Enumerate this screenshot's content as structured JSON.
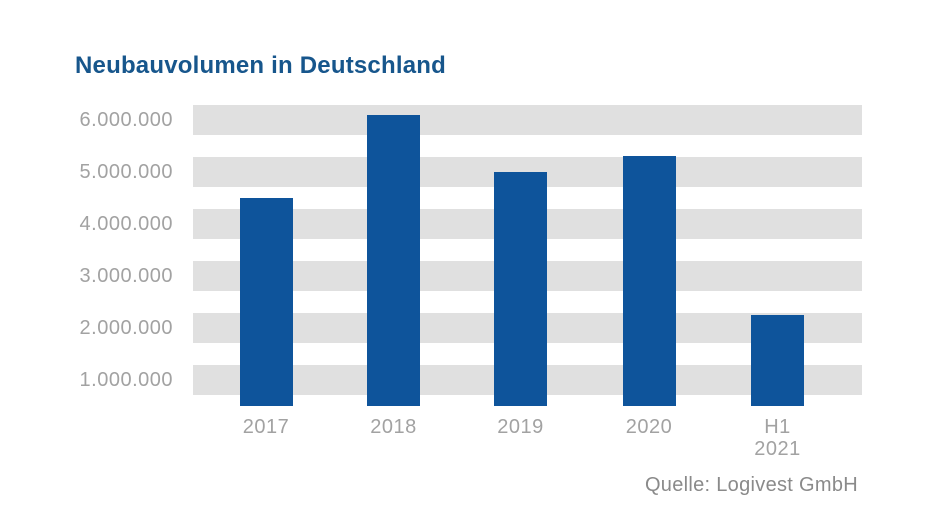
{
  "title": "Neubauvolumen in Deutschland",
  "source": "Quelle: Logivest GmbH",
  "colors": {
    "bar": "#0e549b",
    "title_text": "#17568c",
    "grid_band": "#e0e0e0",
    "axis_text": "#a2a2a2",
    "source_text": "#8a8a8a",
    "background": "#ffffff"
  },
  "chart_data": {
    "type": "bar",
    "title": "Neubauvolumen in Deutschland",
    "categories": [
      "2017",
      "2018",
      "2019",
      "2020",
      "H1\n2021"
    ],
    "values": [
      4500000,
      6100000,
      5000000,
      5300000,
      2250000
    ],
    "xlabel": "",
    "ylabel": "",
    "ylim": [
      500000,
      6500000
    ],
    "y_ticks": [
      1000000,
      2000000,
      3000000,
      4000000,
      5000000,
      6000000
    ],
    "y_tick_labels": [
      "1.000.000",
      "2.000.000",
      "3.000.000",
      "4.000.000",
      "5.000.000",
      "6.000.000"
    ],
    "grid": "alternating horizontal gray bands centered on y ticks",
    "legend": false,
    "source": "Quelle: Logivest GmbH"
  }
}
